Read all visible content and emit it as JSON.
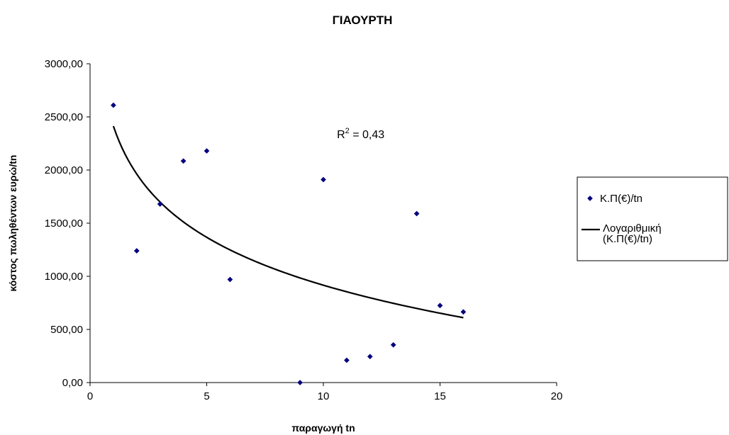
{
  "chart_data": {
    "type": "scatter",
    "title": "ΓΙΑΟΥΡΤΗ",
    "xlabel": "παραγωγή tn",
    "ylabel": "κόστος πωληθέντων ευρώ/tn",
    "xlim": [
      0,
      20
    ],
    "ylim": [
      0,
      3000
    ],
    "xticks": [
      "0",
      "5",
      "10",
      "15",
      "20"
    ],
    "yticks": [
      "0,00",
      "500,00",
      "1000,00",
      "1500,00",
      "2000,00",
      "2500,00",
      "3000,00"
    ],
    "grid": false,
    "legend_position": "right",
    "series": [
      {
        "name": "Κ.Π(€)/tn",
        "kind": "scatter",
        "color": "#000080",
        "x": [
          1,
          2,
          3,
          4,
          5,
          6,
          9,
          10,
          11,
          12,
          13,
          14,
          15,
          16
        ],
        "y": [
          2610,
          1240,
          1680,
          2085,
          2180,
          970,
          0,
          1910,
          210,
          245,
          355,
          1590,
          725,
          665
        ]
      },
      {
        "name": "Λογαριθμική (Κ.Π(€)/tn)",
        "name_lines": [
          "Λογαριθμική",
          "(Κ.Π(€)/tn)"
        ],
        "kind": "trendline",
        "model": "logarithmic",
        "color": "#000000",
        "a": 2413,
        "b": -650,
        "x_range": [
          1,
          16
        ]
      }
    ],
    "annotations": [
      {
        "text_prefix": "R",
        "text_sup": "2",
        "text_suffix": " = 0,43",
        "x": 11.6,
        "y": 2300
      }
    ]
  }
}
